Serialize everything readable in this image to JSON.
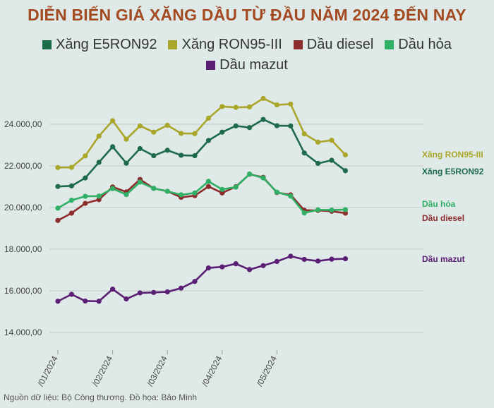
{
  "title": "DIỄN BIẾN GIÁ XĂNG DẦU TỪ ĐẦU NĂM 2024 ĐẾN NAY",
  "footer": "Nguồn dữ liệu: Bộ Công thương. Đồ họa: Bảo Minh",
  "chart_data": {
    "type": "line",
    "title": "DIỄN BIẾN GIÁ XĂNG DẦU TỪ ĐẦU NĂM 2024 ĐẾN NAY",
    "xlabel": "",
    "ylabel": "",
    "ylim": [
      13000,
      26000
    ],
    "yticks": [
      14000,
      16000,
      18000,
      20000,
      22000,
      24000
    ],
    "ytick_labels": [
      "14.000,00",
      "16.000,00",
      "18.000,00",
      "20.000,00",
      "22.000,00",
      "24.000,00"
    ],
    "xticks": [
      {
        "pos": 0,
        "label": "/01/2024"
      },
      {
        "pos": 4,
        "label": "/02/2024"
      },
      {
        "pos": 8,
        "label": "/03/2024"
      },
      {
        "pos": 12,
        "label": "/04/2024"
      },
      {
        "pos": 16,
        "label": "/05/2024"
      }
    ],
    "grid": "horizontal",
    "legend_position": "top",
    "series": [
      {
        "name": "Xăng E5RON92",
        "color": "#1e6b4c",
        "values": [
          21010,
          21040,
          21420,
          22170,
          22920,
          22130,
          22830,
          22490,
          22750,
          22510,
          22490,
          23220,
          23620,
          23920,
          23840,
          24230,
          23930,
          23920,
          22620,
          22120,
          22270,
          21770
        ]
      },
      {
        "name": "Xăng RON95-III",
        "color": "#aaa62a",
        "values": [
          21920,
          21930,
          22480,
          23430,
          24170,
          23280,
          23920,
          23620,
          23950,
          23560,
          23550,
          24290,
          24850,
          24810,
          24830,
          25240,
          24930,
          24970,
          23540,
          23140,
          23230,
          22530
        ]
      },
      {
        "name": "Dầu diesel",
        "color": "#8c2c2c",
        "values": [
          19380,
          19730,
          20200,
          20380,
          20990,
          20750,
          21350,
          20920,
          20780,
          20490,
          20570,
          21010,
          20700,
          21000,
          21600,
          21450,
          20720,
          20610,
          19870,
          19860,
          19820,
          19730
        ]
      },
      {
        "name": "Dầu hỏa",
        "color": "#2fb066",
        "values": [
          19970,
          20350,
          20540,
          20550,
          20910,
          20620,
          21220,
          20920,
          20780,
          20610,
          20700,
          21260,
          20870,
          20980,
          21610,
          21420,
          20740,
          20550,
          19740,
          19890,
          19880,
          19900
        ]
      },
      {
        "name": "Dầu mazut",
        "color": "#5a1f74",
        "values": [
          15500,
          15830,
          15510,
          15500,
          16080,
          15610,
          15900,
          15920,
          15950,
          16130,
          16450,
          17100,
          17150,
          17300,
          17020,
          17210,
          17410,
          17660,
          17510,
          17430,
          17520,
          17540
        ]
      }
    ],
    "end_labels": [
      {
        "series": 1,
        "text": "Xăng RON95-III"
      },
      {
        "series": 0,
        "text": "Xăng E5RON92"
      },
      {
        "series": 3,
        "text": "Dầu hỏa"
      },
      {
        "series": 2,
        "text": "Dầu diesel"
      },
      {
        "series": 4,
        "text": "Dầu mazut"
      }
    ]
  }
}
